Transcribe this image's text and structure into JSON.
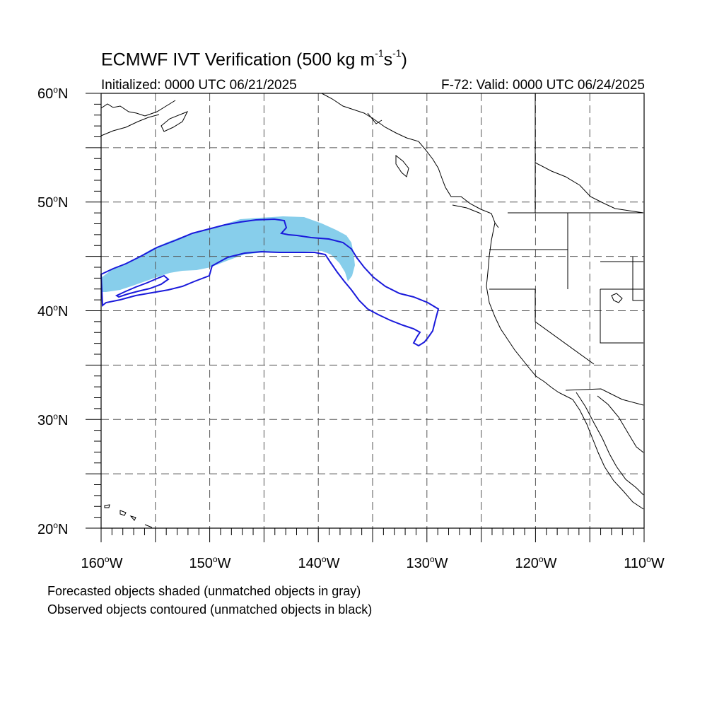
{
  "header": {
    "title_prefix": "ECMWF IVT Verification (500 kg m",
    "title_exp1": "-1",
    "title_mid": "s",
    "title_exp2": "-1",
    "title_suffix": ")",
    "initialized": "Initialized: 0000 UTC 06/21/2025",
    "valid": "F-72: Valid: 0000 UTC 06/24/2025"
  },
  "map": {
    "projection": "cylindrical-equidistant",
    "lon_range": [
      -160,
      -110
    ],
    "lat_range": [
      20,
      60
    ],
    "grid": true,
    "grid_style": "dashed",
    "lat_labels": [
      {
        "value": "60",
        "hemi": "N"
      },
      {
        "value": "50",
        "hemi": "N"
      },
      {
        "value": "40",
        "hemi": "N"
      },
      {
        "value": "30",
        "hemi": "N"
      },
      {
        "value": "20",
        "hemi": "N"
      }
    ],
    "lon_labels": [
      {
        "value": "160",
        "hemi": "W"
      },
      {
        "value": "150",
        "hemi": "W"
      },
      {
        "value": "140",
        "hemi": "W"
      },
      {
        "value": "130",
        "hemi": "W"
      },
      {
        "value": "120",
        "hemi": "W"
      },
      {
        "value": "110",
        "hemi": "W"
      }
    ],
    "colors": {
      "forecast_fill": "#87ceeb",
      "observed_contour": "#1a1adb",
      "coastline": "#000000",
      "grid": "#555555"
    }
  },
  "caption": {
    "line1": "Forecasted objects shaded (unmatched objects in gray)",
    "line2": "Observed objects contoured (unmatched objects in black)"
  }
}
